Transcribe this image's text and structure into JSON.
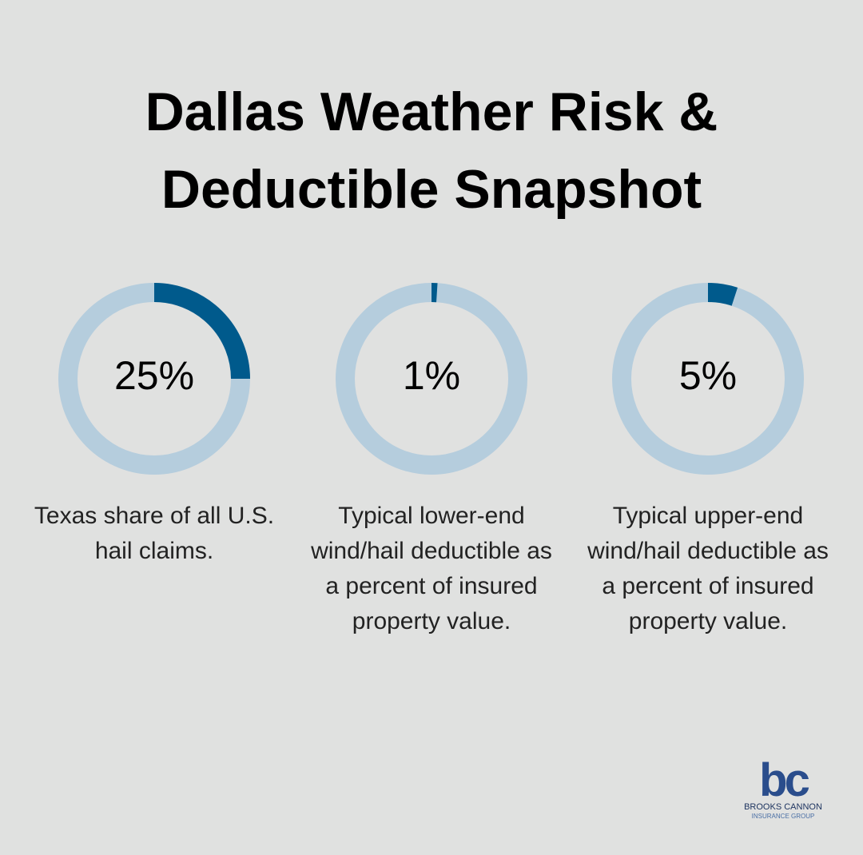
{
  "title": "Dallas Weather Risk & Deductible Snapshot",
  "chart_data": [
    {
      "type": "donut",
      "values": [
        25
      ],
      "value_labels": [
        "25%"
      ],
      "caption": "Texas share of all U.S. hail claims.",
      "color": "#005a8c",
      "track_color": "#b5cddd"
    },
    {
      "type": "donut",
      "values": [
        1
      ],
      "value_labels": [
        "1%"
      ],
      "caption": "Typical lower-end wind/hail deductible as a percent of insured property value.",
      "color": "#005a8c",
      "track_color": "#b5cddd"
    },
    {
      "type": "donut",
      "values": [
        5
      ],
      "value_labels": [
        "5%"
      ],
      "caption": "Typical upper-end wind/hail deductible as a percent of insured property value.",
      "color": "#005a8c",
      "track_color": "#b5cddd"
    }
  ],
  "logo": {
    "mark": "bc",
    "name": "BROOKS CANNON",
    "subtitle": "INSURANCE GROUP"
  }
}
